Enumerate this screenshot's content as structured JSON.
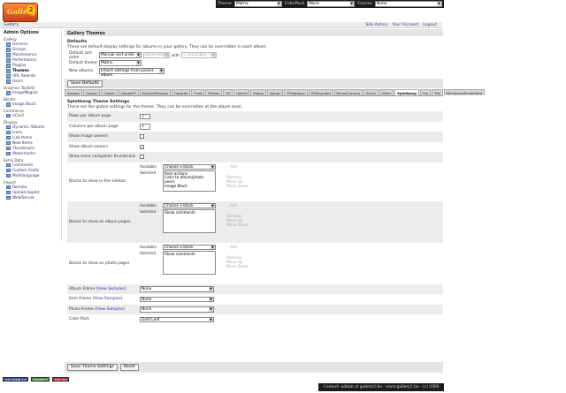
{
  "topbar": {
    "theme_label": "Theme",
    "theme_value": "Matrix",
    "colorpack_label": "ColorPack",
    "colorpack_value": "None",
    "frames_label": "Frames",
    "frames_value": "None"
  },
  "logo": {
    "text": "Gallery",
    "num": "2"
  },
  "header": {
    "gallery": "Gallery",
    "links": [
      "Site Admin",
      "Your Account",
      "Logout"
    ]
  },
  "sidebar": {
    "title": "Admin Options",
    "sections": [
      {
        "name": "Gallery",
        "items": [
          "General",
          "Groups",
          "Maintenance",
          "Performance",
          "Plugins",
          "Themes",
          "URL Rewrite",
          "Users"
        ]
      },
      {
        "name": "Graphics Toolkits",
        "items": [
          "ImageMagick"
        ]
      },
      {
        "name": "Blocks",
        "items": [
          "Image Block"
        ]
      },
      {
        "name": "Commerce",
        "items": [
          "eCard"
        ]
      },
      {
        "name": "Display",
        "items": [
          "Dynamic Albums",
          "Icons",
          "Link Items",
          "New Items",
          "Thumbnails",
          "Watermarks"
        ]
      },
      {
        "name": "Extra Data",
        "items": [
          "Comments",
          "Custom Fields",
          "Multilanguage"
        ]
      },
      {
        "name": "Import",
        "items": [
          "Remote",
          "Upload Applet",
          "Web/Server"
        ]
      }
    ],
    "current": "Themes"
  },
  "main": {
    "section_title": "Gallery Themes",
    "defaults": {
      "title": "Defaults",
      "desc": "These are default display settings for albums in your gallery.  They can be overridden in each album.",
      "sort_label": "Default sort order",
      "sort_value": "Manual sort order",
      "sort_dir": "Ascending",
      "with_label": "with",
      "secondary": "< secondary >",
      "theme_label": "Default theme",
      "theme_value": "Matrix",
      "new_albums_label": "New albums",
      "new_albums_value": "Inherit settings from parent album",
      "save_label": "Save Defaults"
    },
    "tabs": [
      "Ajaxian",
      "Carbon",
      "Classic",
      "DappleFl",
      "EclecticReveals",
      "Floatrite",
      "Fluid",
      "Portals",
      "G3",
      "Hybrid",
      "Matrix",
      "Nation",
      "PGlightbox",
      "PGRounded",
      "RoundCorners",
      "Siriux",
      "Slider",
      "Splotbang",
      "Tile",
      "Tile",
      "WordpressEmbedded"
    ],
    "active_tab": "Splotbang",
    "theme_settings": {
      "title": "Splotbang Theme Settings",
      "desc": "These are the global settings for the theme.  They can be overridden at the album level.",
      "rows_label": "Rows per album page",
      "rows_value": "3",
      "cols_label": "Columns per album page",
      "cols_value": "3",
      "show_owners_label": "Show image owners",
      "show_album_owners_label": "Show album owners",
      "show_more_label": "Show more navigation thumbnails",
      "blocks_sidebar_label": "Blocks to show in the sidebar",
      "blocks_album_label": "Blocks to show on album pages",
      "blocks_photo_label": "Blocks to show on photo pages",
      "available_label": "Available",
      "selected_label": "Selected",
      "choose_block": "Choose a block",
      "add": "Add",
      "remove": "Remove",
      "move_up": "Move Up",
      "move_down": "Move Down",
      "sidebar_selected": [
        "Item actions",
        "Links to album/photo peers",
        "Image Block"
      ],
      "album_selected": [
        "Show comments"
      ],
      "photo_selected": [
        "Show comments"
      ],
      "album_frame_label": "Album Frame",
      "item_frame_label": "Item Frame",
      "photo_frame_label": "Photo Frame",
      "view_samples": "View Samples",
      "frame_value": "None",
      "color_pack_label": "Color Pack",
      "color_pack_value": "Gold Leaf",
      "save_label": "Save Theme Settings",
      "reset_label": "Reset"
    }
  },
  "badges": [
    "W3C XHTML 1.0",
    "GALLERY 2",
    "W3C CSS"
  ],
  "footer": "Contact: admin at gallery2.hu - www.gallery2.hu - (c) 2006"
}
